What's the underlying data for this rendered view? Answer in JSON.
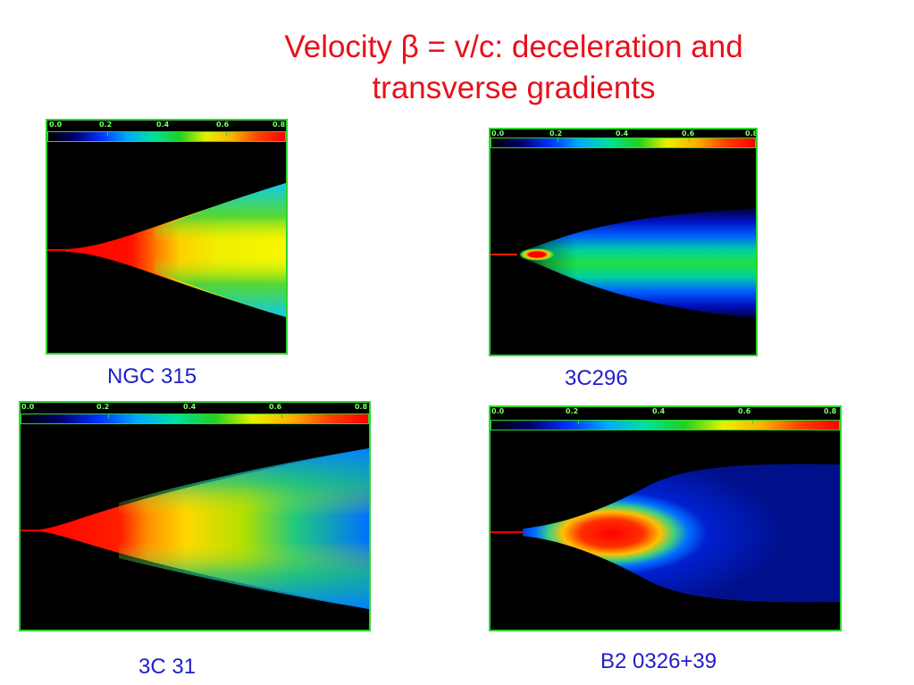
{
  "title": {
    "line1": "Velocity β = v/c: deceleration and",
    "line2": "transverse gradients"
  },
  "colorbar": {
    "ticks": [
      "0.0",
      "0.2",
      "0.4",
      "0.6",
      "0.8"
    ],
    "stops": [
      "#000000",
      "#00006e",
      "#0030ff",
      "#00a8ff",
      "#00e0a0",
      "#20d020",
      "#e8f000",
      "#ffb000",
      "#ff4000",
      "#ff0000"
    ]
  },
  "panels": [
    {
      "caption": "NGC 315"
    },
    {
      "caption": "3C296"
    },
    {
      "caption": "3C 31"
    },
    {
      "caption": "B2 0326+39"
    }
  ]
}
